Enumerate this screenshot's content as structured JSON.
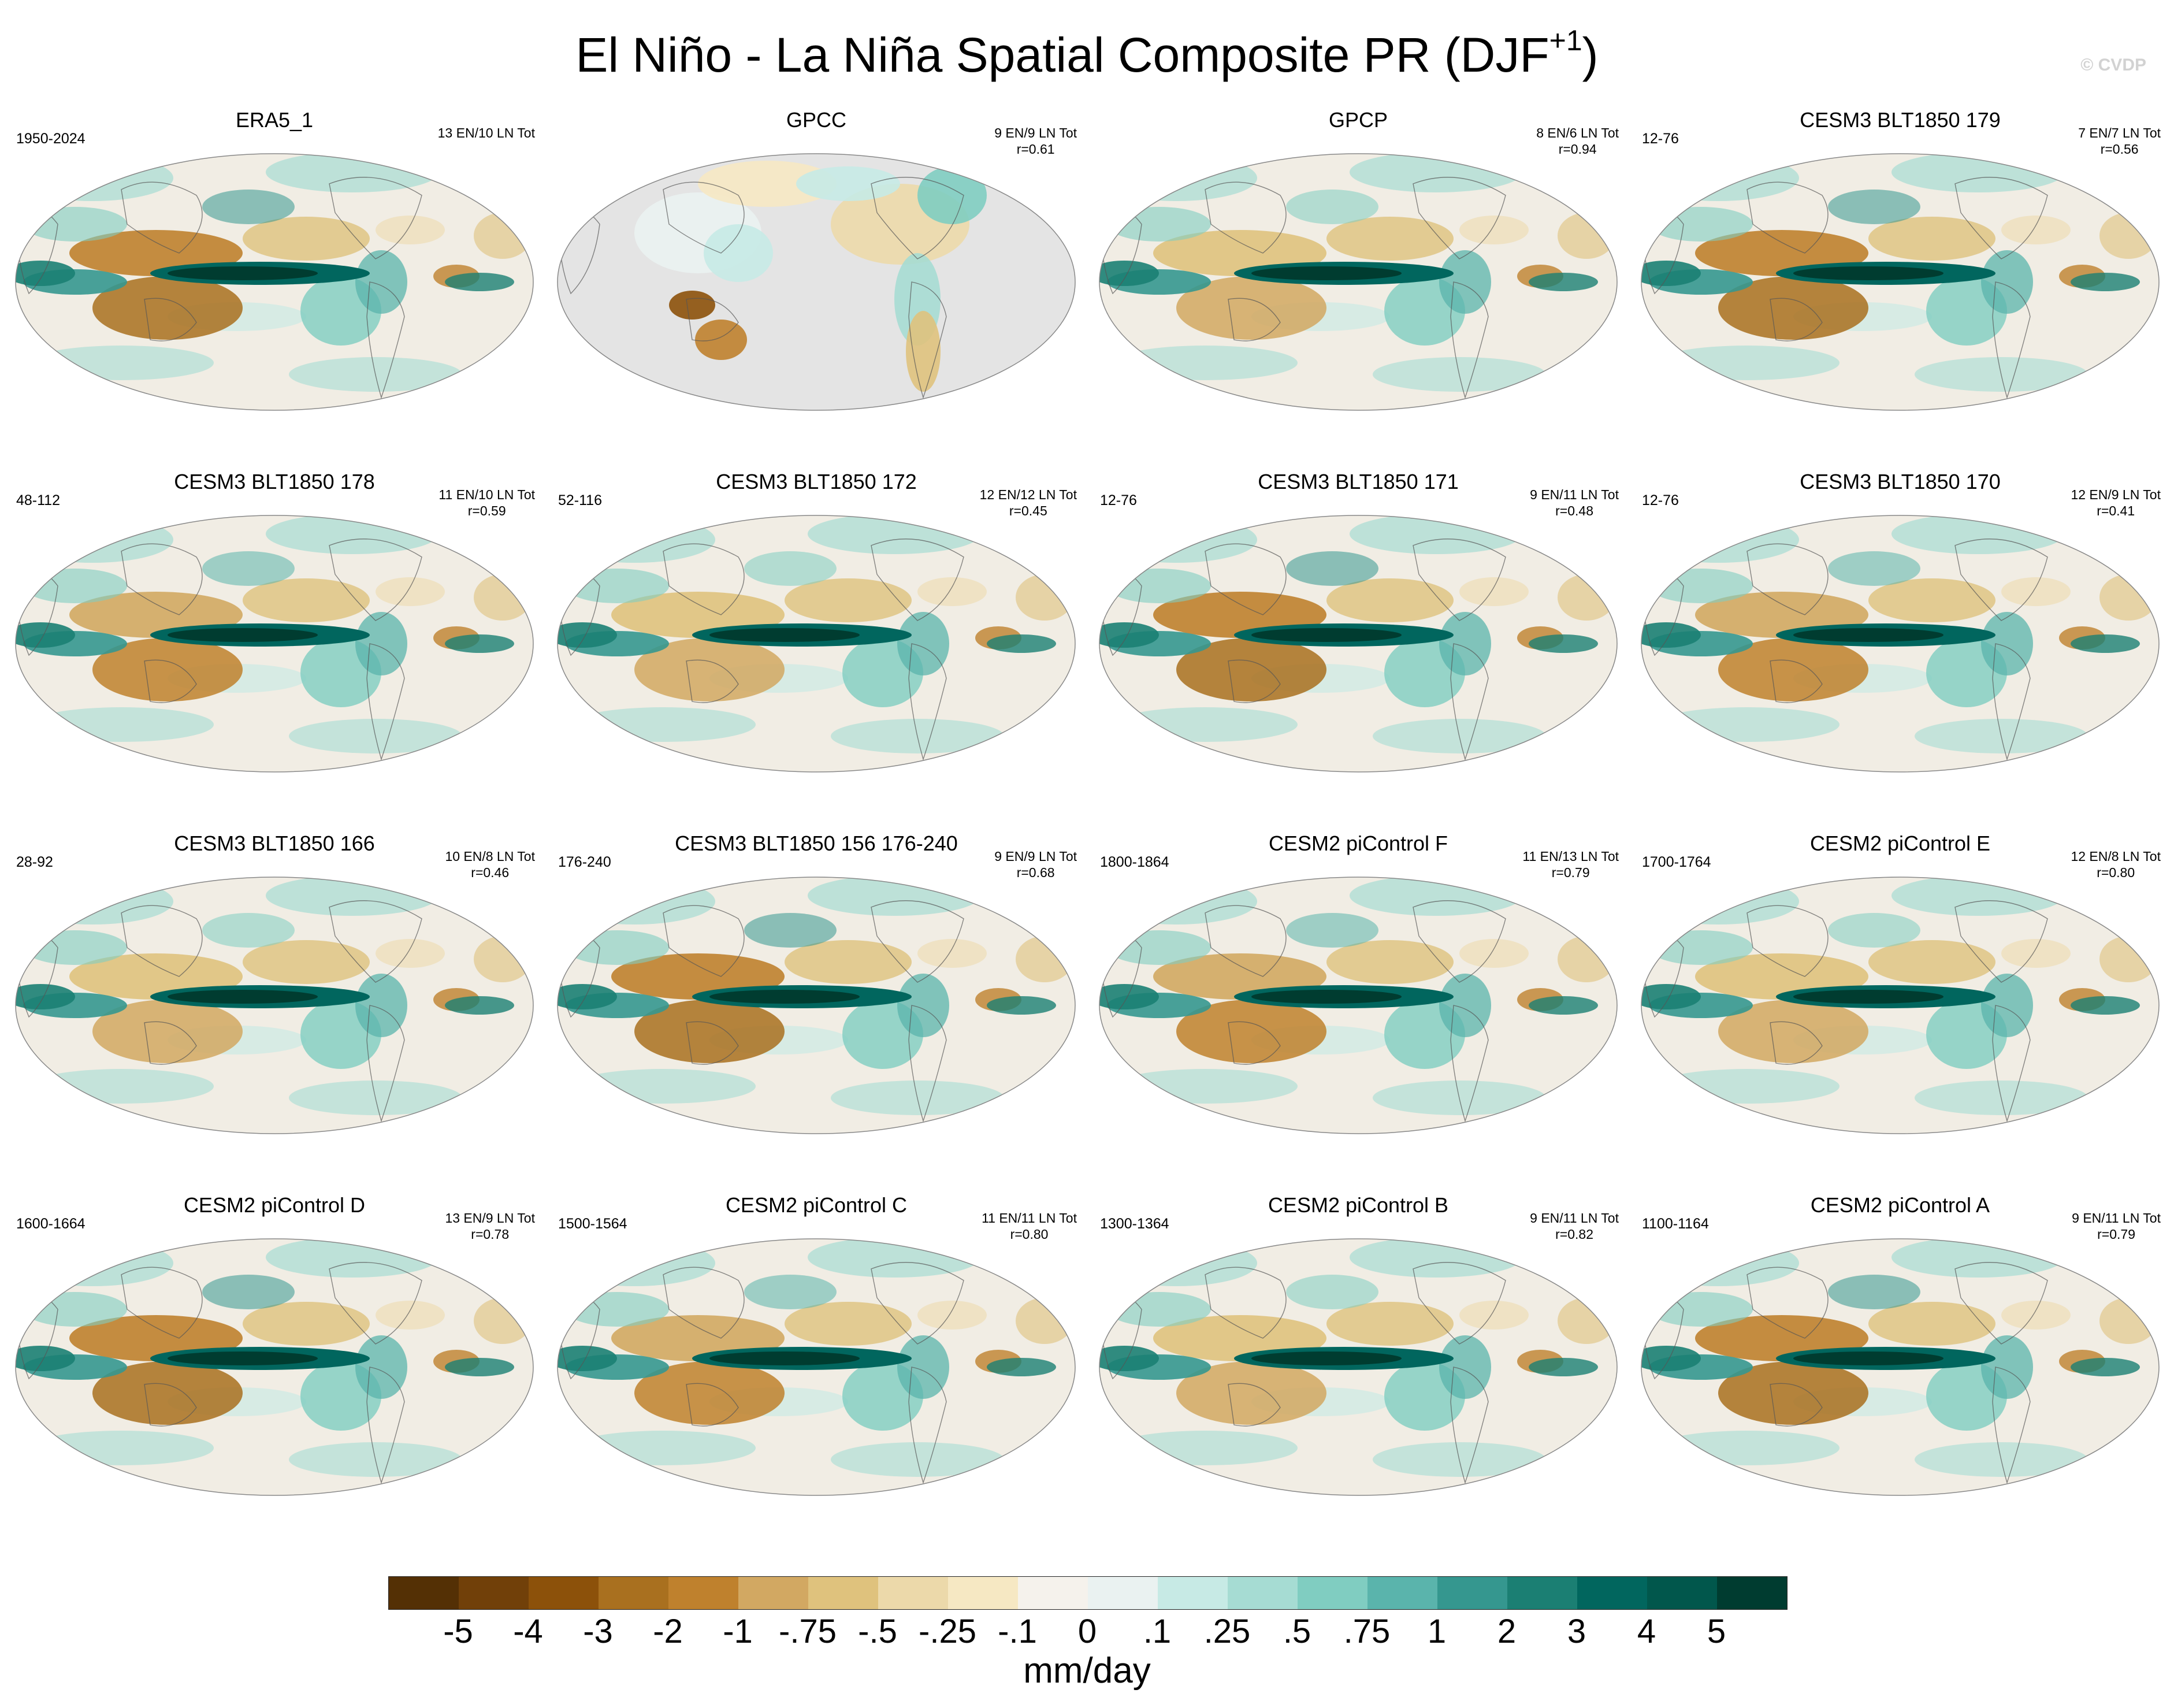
{
  "figure": {
    "title_main": "El Niño - La Niña Spatial Composite PR (DJF",
    "title_sup": "+1",
    "title_close": ")",
    "credit": "© CVDP"
  },
  "panels": [
    {
      "title": "ERA5_1",
      "period": "1950-2024",
      "stats": [
        "13 EN/10 LN Tot"
      ]
    },
    {
      "title": "GPCC",
      "period": "",
      "stats": [
        "9 EN/9 LN Tot",
        "r=0.61"
      ]
    },
    {
      "title": "GPCP",
      "period": "",
      "stats": [
        "8 EN/6 LN Tot",
        "r=0.94"
      ]
    },
    {
      "title": "CESM3 BLT1850 179",
      "period": "12-76",
      "stats": [
        "7 EN/7 LN Tot",
        "r=0.56"
      ]
    },
    {
      "title": "CESM3 BLT1850 178",
      "period": "48-112",
      "stats": [
        "11 EN/10 LN Tot",
        "r=0.59"
      ]
    },
    {
      "title": "CESM3 BLT1850 172",
      "period": "52-116",
      "stats": [
        "12 EN/12 LN Tot",
        "r=0.45"
      ]
    },
    {
      "title": "CESM3 BLT1850 171",
      "period": "12-76",
      "stats": [
        "9 EN/11 LN Tot",
        "r=0.48"
      ]
    },
    {
      "title": "CESM3 BLT1850 170",
      "period": "12-76",
      "stats": [
        "12 EN/9 LN Tot",
        "r=0.41"
      ]
    },
    {
      "title": "CESM3 BLT1850 166",
      "period": "28-92",
      "stats": [
        "10 EN/8 LN Tot",
        "r=0.46"
      ]
    },
    {
      "title": "CESM3 BLT1850 156 176-240",
      "period": "176-240",
      "stats": [
        "9 EN/9 LN Tot",
        "r=0.68"
      ]
    },
    {
      "title": "CESM2 piControl F",
      "period": "1800-1864",
      "stats": [
        "11 EN/13 LN Tot",
        "r=0.79"
      ]
    },
    {
      "title": "CESM2 piControl E",
      "period": "1700-1764",
      "stats": [
        "12 EN/8 LN Tot",
        "r=0.80"
      ]
    },
    {
      "title": "CESM2 piControl D",
      "period": "1600-1664",
      "stats": [
        "13 EN/9 LN Tot",
        "r=0.78"
      ]
    },
    {
      "title": "CESM2 piControl C",
      "period": "1500-1564",
      "stats": [
        "11 EN/11 LN Tot",
        "r=0.80"
      ]
    },
    {
      "title": "CESM2 piControl B",
      "period": "1300-1364",
      "stats": [
        "9 EN/11 LN Tot",
        "r=0.82"
      ]
    },
    {
      "title": "CESM2 piControl A",
      "period": "1100-1164",
      "stats": [
        "9 EN/11 LN Tot",
        "r=0.79"
      ]
    }
  ],
  "colorbar": {
    "colors": [
      "#543005",
      "#714009",
      "#8c510a",
      "#a9701f",
      "#bf812d",
      "#d2a862",
      "#dfc27d",
      "#ecd9aa",
      "#f6e8c3",
      "#f5f2ec",
      "#eaf2f1",
      "#c7eae5",
      "#a6dcd3",
      "#80cdc1",
      "#5ab4ac",
      "#35978f",
      "#1b7f73",
      "#01665e",
      "#01574c",
      "#003c30"
    ],
    "tick_labels": [
      "-5",
      "-4",
      "-3",
      "-2",
      "-1",
      "-.75",
      "-.5",
      "-.25",
      "-.1",
      "0",
      ".1",
      ".25",
      ".5",
      ".75",
      "1",
      "2",
      "3",
      "4",
      "5"
    ],
    "units": "mm/day"
  }
}
